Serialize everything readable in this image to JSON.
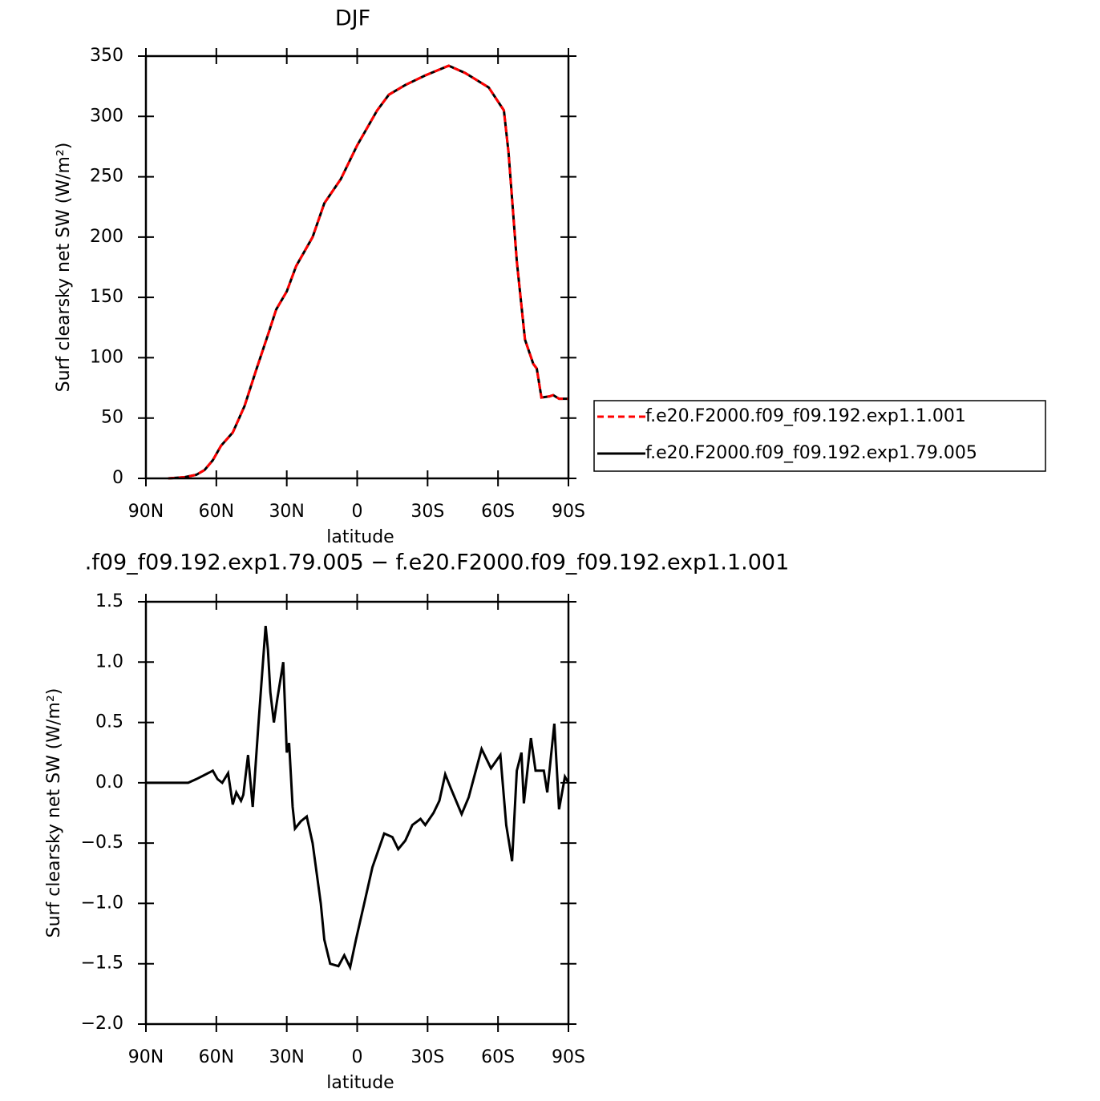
{
  "chart_data": [
    {
      "type": "line",
      "title": "DJF",
      "xlabel": "latitude",
      "ylabel": "Surf clearsky net SW (W/m²)",
      "x": [
        80.5,
        73.5,
        68.5,
        65,
        61.5,
        58,
        53,
        48,
        43,
        37.5,
        34.5,
        30,
        26,
        19,
        14,
        7,
        0,
        -8.5,
        -13.5,
        -20.5,
        -29,
        -39,
        -46,
        -56,
        -62.5,
        -64.5,
        -68,
        -71.5,
        -75,
        -76.5,
        -78.5,
        -82,
        -83.5,
        -86,
        -90
      ],
      "series": [
        {
          "name": "f.e20.F2000.f09_f09.192.exp1.1.001",
          "color": "#ff0000",
          "linestyle": "dashed",
          "values": [
            0,
            1,
            3,
            7,
            15,
            27,
            38,
            60,
            90,
            122,
            140,
            155,
            176,
            200,
            228,
            248,
            276,
            305,
            318,
            326,
            334,
            342,
            336,
            324,
            305,
            270,
            180,
            115,
            95,
            91,
            67,
            68,
            69,
            66,
            66
          ]
        },
        {
          "name": "f.e20.F2000.f09_f09.192.exp1.79.005",
          "color": "#000000",
          "linestyle": "solid",
          "values": [
            0,
            1,
            3,
            7,
            15,
            27,
            38,
            60,
            90,
            122,
            140,
            155,
            176,
            200,
            228,
            248,
            276,
            305,
            318,
            326,
            334,
            342,
            336,
            324,
            305,
            270,
            180,
            115,
            95,
            91,
            67,
            68,
            69,
            66,
            66
          ]
        }
      ],
      "xlim": [
        90,
        -90
      ],
      "xticks": [
        {
          "value": 90,
          "label": "90N"
        },
        {
          "value": 60,
          "label": "60N"
        },
        {
          "value": 30,
          "label": "30N"
        },
        0,
        {
          "value": -30,
          "label": "30S"
        },
        {
          "value": -60,
          "label": "60S"
        },
        {
          "value": -90,
          "label": "90S"
        }
      ],
      "ylim": [
        0,
        350
      ],
      "yticks": [
        0,
        50,
        100,
        150,
        200,
        250,
        300,
        350
      ],
      "legend": "right"
    },
    {
      "type": "line",
      "title": ".f09_f09.192.exp1.79.005 − f.e20.F2000.f09_f09.192.exp1.1.001",
      "xlabel": "latitude",
      "ylabel": "Surf clearsky net SW (W/m²)",
      "x": [
        90,
        72,
        68.5,
        62.5,
        61.5,
        59.5,
        57.5,
        55,
        53,
        51.5,
        49.5,
        48.5,
        46.5,
        44.5,
        42,
        39,
        38,
        37,
        35.5,
        34,
        31.5,
        30,
        29,
        27.5,
        26.5,
        24,
        21.5,
        19,
        15.5,
        14,
        11.5,
        8,
        5.5,
        3,
        0.5,
        -3,
        -6.5,
        -11.5,
        -15,
        -17.5,
        -20.5,
        -23.5,
        -27,
        -29,
        -32.5,
        -35,
        -37.5,
        -40,
        -44.5,
        -47.5,
        -53,
        -57,
        -61,
        -63.5,
        -66,
        -68,
        -70,
        -71,
        -74,
        -76,
        -79.5,
        -81,
        -84,
        -86,
        -88.5,
        -90
      ],
      "color": "#000000",
      "values": [
        0,
        0,
        0.03,
        0.09,
        0.1,
        0.03,
        0,
        0.08,
        -0.18,
        -0.08,
        -0.15,
        -0.1,
        0.23,
        -0.2,
        0.5,
        1.3,
        1.1,
        0.75,
        0.5,
        0.7,
        1.0,
        0.25,
        0.33,
        -0.2,
        -0.38,
        -0.32,
        -0.28,
        -0.5,
        -1.0,
        -1.3,
        -1.5,
        -1.52,
        -1.43,
        -1.53,
        -1.3,
        -1.0,
        -0.7,
        -0.42,
        -0.45,
        -0.55,
        -0.48,
        -0.35,
        -0.3,
        -0.35,
        -0.25,
        -0.15,
        0.07,
        -0.05,
        -0.26,
        -0.12,
        0.28,
        0.12,
        0.23,
        -0.35,
        -0.65,
        0.1,
        0.25,
        -0.17,
        0.37,
        0.1,
        0.1,
        -0.08,
        0.49,
        -0.22,
        0.05,
        0
      ],
      "xlim": [
        90,
        -90
      ],
      "xticks": [
        {
          "value": 90,
          "label": "90N"
        },
        {
          "value": 60,
          "label": "60N"
        },
        {
          "value": 30,
          "label": "30N"
        },
        0,
        {
          "value": -30,
          "label": "30S"
        },
        {
          "value": -60,
          "label": "60S"
        },
        {
          "value": -90,
          "label": "90S"
        }
      ],
      "ylim": [
        -2,
        1.5
      ],
      "yticks": [
        {
          "value": -2,
          "label": "−2.0"
        },
        {
          "value": -1.5,
          "label": "−1.5"
        },
        {
          "value": -1,
          "label": "−1.0"
        },
        {
          "value": -0.5,
          "label": "−0.5"
        },
        {
          "value": 0,
          "label": "0.0"
        },
        0.5,
        {
          "value": 1,
          "label": "1.0"
        },
        1.5
      ]
    }
  ]
}
